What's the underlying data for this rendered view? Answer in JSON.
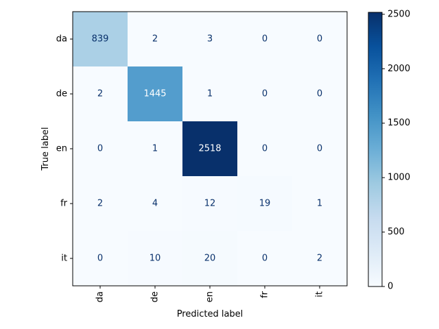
{
  "chart_data": {
    "type": "heatmap",
    "title": "",
    "xlabel": "Predicted label",
    "ylabel": "True label",
    "x_categories": [
      "da",
      "de",
      "en",
      "fr",
      "it"
    ],
    "y_categories": [
      "da",
      "de",
      "en",
      "fr",
      "it"
    ],
    "matrix": [
      [
        839,
        2,
        3,
        0,
        0
      ],
      [
        2,
        1445,
        1,
        0,
        0
      ],
      [
        0,
        1,
        2518,
        0,
        0
      ],
      [
        2,
        4,
        12,
        19,
        1
      ],
      [
        0,
        10,
        20,
        0,
        2
      ]
    ],
    "matrix_labels": [
      [
        "839",
        "2",
        "3",
        "0",
        "0"
      ],
      [
        "2",
        "1445",
        "1",
        "0",
        "0"
      ],
      [
        "0",
        "1",
        "2518",
        "0",
        "0"
      ],
      [
        "2",
        "4",
        "12",
        "19",
        "1"
      ],
      [
        "0",
        "10",
        "20",
        "0",
        "2"
      ]
    ],
    "colormap": "Blues",
    "colorbar": {
      "range": [
        0,
        2518
      ],
      "ticks": [
        0,
        500,
        1000,
        1500,
        2000,
        2500
      ],
      "tick_labels": [
        "0",
        "500",
        "1000",
        "1500",
        "2000",
        "2500"
      ]
    },
    "x_tick_rotation": "vertical",
    "grid": false
  }
}
